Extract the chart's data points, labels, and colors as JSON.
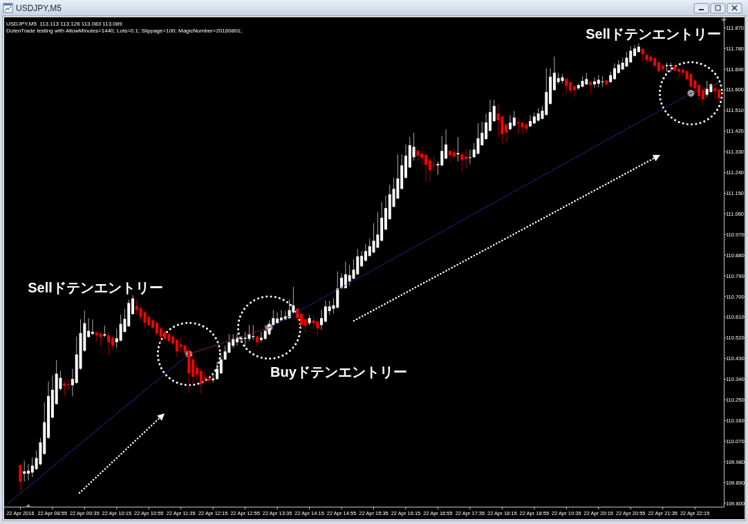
{
  "chart_data": {
    "type": "candlestick",
    "title": "USDJPY,M5",
    "subtitle": "USDJPY,M5  113.113 113.126 113.083 113.089",
    "annotations": [
      "DotenTrade testing with AllowMinutes=1440; Lots=0.1; Slippage=100; MagicNumber=20160801;",
      "Sellドテンエントリー",
      "Buyドテンエントリー",
      "Sellドテンエントリー"
    ],
    "x": [
      "2016-04-22T08:15",
      "2016-04-22T08:20",
      "2016-04-22T08:25",
      "2016-04-22T08:30",
      "2016-04-22T08:35",
      "2016-04-22T08:40",
      "2016-04-22T08:45",
      "2016-04-22T08:50",
      "2016-04-22T08:55",
      "2016-04-22T09:00",
      "2016-04-22T09:05",
      "2016-04-22T09:10",
      "2016-04-22T09:15",
      "2016-04-22T09:20",
      "2016-04-22T09:25",
      "2016-04-22T09:30",
      "2016-04-22T09:35",
      "2016-04-22T09:40",
      "2016-04-22T09:45",
      "2016-04-22T09:50",
      "2016-04-22T09:55",
      "2016-04-22T10:00",
      "2016-04-22T10:05",
      "2016-04-22T10:10",
      "2016-04-22T10:15",
      "2016-04-22T10:20",
      "2016-04-22T10:25",
      "2016-04-22T10:30",
      "2016-04-22T10:35",
      "2016-04-22T10:40",
      "2016-04-22T10:45",
      "2016-04-22T10:50",
      "2016-04-22T10:55",
      "2016-04-22T11:00",
      "2016-04-22T11:05",
      "2016-04-22T11:10",
      "2016-04-22T11:15",
      "2016-04-22T11:20",
      "2016-04-22T11:25",
      "2016-04-22T11:30",
      "2016-04-22T11:35",
      "2016-04-22T11:40",
      "2016-04-22T11:45",
      "2016-04-22T11:50",
      "2016-04-22T11:55",
      "2016-04-22T12:00",
      "2016-04-22T12:05",
      "2016-04-22T12:10",
      "2016-04-22T12:15",
      "2016-04-22T12:20",
      "2016-04-22T12:25",
      "2016-04-22T12:30",
      "2016-04-22T12:35",
      "2016-04-22T12:40",
      "2016-04-22T12:45",
      "2016-04-22T12:50",
      "2016-04-22T12:55",
      "2016-04-22T13:00",
      "2016-04-22T13:05",
      "2016-04-22T13:10",
      "2016-04-22T13:15",
      "2016-04-22T13:20",
      "2016-04-22T13:25",
      "2016-04-22T13:30",
      "2016-04-22T13:35",
      "2016-04-22T13:40",
      "2016-04-22T13:45",
      "2016-04-22T13:50",
      "2016-04-22T13:55",
      "2016-04-22T14:00",
      "2016-04-22T14:05",
      "2016-04-22T14:10",
      "2016-04-22T14:15",
      "2016-04-22T14:20",
      "2016-04-22T14:25",
      "2016-04-22T14:30",
      "2016-04-22T14:35",
      "2016-04-22T14:40",
      "2016-04-22T14:45",
      "2016-04-22T14:50",
      "2016-04-22T14:55",
      "2016-04-22T15:00",
      "2016-04-22T15:05",
      "2016-04-22T15:10",
      "2016-04-22T15:15",
      "2016-04-22T15:20",
      "2016-04-22T15:25",
      "2016-04-22T15:30",
      "2016-04-22T15:35",
      "2016-04-22T15:40",
      "2016-04-22T15:45",
      "2016-04-22T15:50",
      "2016-04-22T15:55",
      "2016-04-22T16:00",
      "2016-04-22T16:05",
      "2016-04-22T16:10",
      "2016-04-22T16:15",
      "2016-04-22T16:20",
      "2016-04-22T16:25",
      "2016-04-22T16:30",
      "2016-04-22T16:35",
      "2016-04-22T16:40",
      "2016-04-22T16:45",
      "2016-04-22T16:50",
      "2016-04-22T16:55",
      "2016-04-22T17:00",
      "2016-04-22T17:05",
      "2016-04-22T17:10",
      "2016-04-22T17:15",
      "2016-04-22T17:20",
      "2016-04-22T17:25",
      "2016-04-22T17:30",
      "2016-04-22T17:35",
      "2016-04-22T17:40",
      "2016-04-22T17:45",
      "2016-04-22T17:50",
      "2016-04-22T17:55",
      "2016-04-22T18:00",
      "2016-04-22T18:05",
      "2016-04-22T18:10",
      "2016-04-22T18:15",
      "2016-04-22T18:20",
      "2016-04-22T18:25",
      "2016-04-22T18:30",
      "2016-04-22T18:35",
      "2016-04-22T18:40",
      "2016-04-22T18:45",
      "2016-04-22T18:50",
      "2016-04-22T18:55",
      "2016-04-22T19:00",
      "2016-04-22T19:05",
      "2016-04-22T19:10",
      "2016-04-22T19:15",
      "2016-04-22T19:20",
      "2016-04-22T19:25",
      "2016-04-22T19:30",
      "2016-04-22T19:35",
      "2016-04-22T19:40",
      "2016-04-22T19:45",
      "2016-04-22T19:50",
      "2016-04-22T19:55",
      "2016-04-22T20:00",
      "2016-04-22T20:05",
      "2016-04-22T20:10",
      "2016-04-22T20:15",
      "2016-04-22T20:20",
      "2016-04-22T20:25",
      "2016-04-22T20:30",
      "2016-04-22T20:35",
      "2016-04-22T20:40",
      "2016-04-22T20:45",
      "2016-04-22T20:50",
      "2016-04-22T20:55",
      "2016-04-22T21:00",
      "2016-04-22T21:05",
      "2016-04-22T21:10",
      "2016-04-22T21:15",
      "2016-04-22T21:20",
      "2016-04-22T21:25",
      "2016-04-22T21:30",
      "2016-04-22T21:35",
      "2016-04-22T21:40",
      "2016-04-22T21:45",
      "2016-04-22T21:50",
      "2016-04-22T21:55",
      "2016-04-22T22:00",
      "2016-04-22T22:05",
      "2016-04-22T22:10",
      "2016-04-22T22:15",
      "2016-04-22T22:20",
      "2016-04-22T22:25",
      "2016-04-22T22:30",
      "2016-04-22T22:35",
      "2016-04-22T22:40",
      "2016-04-22T22:45"
    ],
    "ohlc": [
      [
        109.966,
        109.969,
        109.854,
        109.894
      ],
      [
        109.929,
        109.985,
        109.894,
        109.939
      ],
      [
        109.929,
        109.97,
        109.899,
        109.942
      ],
      [
        109.934,
        110.0,
        109.914,
        109.964
      ],
      [
        109.949,
        110.03,
        109.944,
        109.997
      ],
      [
        109.97,
        110.085,
        109.965,
        110.065
      ],
      [
        110.015,
        110.24,
        110.01,
        110.153
      ],
      [
        110.085,
        110.331,
        110.08,
        110.267
      ],
      [
        110.173,
        110.356,
        110.17,
        110.294
      ],
      [
        110.232,
        110.424,
        110.23,
        110.364
      ],
      [
        110.298,
        110.376,
        110.291,
        110.346
      ],
      [
        110.321,
        110.336,
        110.266,
        110.311
      ],
      [
        110.318,
        110.341,
        110.291,
        110.314
      ],
      [
        110.314,
        110.386,
        110.266,
        110.341
      ],
      [
        110.324,
        110.526,
        110.32,
        110.448
      ],
      [
        110.386,
        110.601,
        110.38,
        110.541
      ],
      [
        110.464,
        110.639,
        110.46,
        110.584
      ],
      [
        110.524,
        110.606,
        110.521,
        110.551
      ],
      [
        110.538,
        110.601,
        110.531,
        110.546
      ],
      [
        110.543,
        110.551,
        110.506,
        110.531
      ],
      [
        110.538,
        110.548,
        110.486,
        110.524
      ],
      [
        110.53,
        110.574,
        110.524,
        110.536
      ],
      [
        110.531,
        110.546,
        110.446,
        110.501
      ],
      [
        110.521,
        110.531,
        110.468,
        110.486
      ],
      [
        110.501,
        110.561,
        110.476,
        110.518
      ],
      [
        110.508,
        110.621,
        110.505,
        110.581
      ],
      [
        110.546,
        110.647,
        110.543,
        110.603
      ],
      [
        110.571,
        110.687,
        110.568,
        110.672
      ],
      [
        110.624,
        110.707,
        110.62,
        110.692
      ],
      [
        110.659,
        110.687,
        110.621,
        110.642
      ],
      [
        110.649,
        110.662,
        110.596,
        110.611
      ],
      [
        110.632,
        110.637,
        110.561,
        110.586
      ],
      [
        110.611,
        110.616,
        110.571,
        110.576
      ],
      [
        110.596,
        110.606,
        110.556,
        110.564
      ],
      [
        110.586,
        110.59,
        110.526,
        110.538
      ],
      [
        110.561,
        110.566,
        110.496,
        110.526
      ],
      [
        110.546,
        110.551,
        110.511,
        110.516
      ],
      [
        110.536,
        110.541,
        110.496,
        110.506
      ],
      [
        110.526,
        110.531,
        110.486,
        110.496
      ],
      [
        110.511,
        110.516,
        110.436,
        110.461
      ],
      [
        110.491,
        110.524,
        110.456,
        110.481
      ],
      [
        110.486,
        110.49,
        110.446,
        110.456
      ],
      [
        110.465,
        110.48,
        110.28,
        110.365
      ],
      [
        110.426,
        110.446,
        110.32,
        110.351
      ],
      [
        110.391,
        110.406,
        110.336,
        110.361
      ],
      [
        110.376,
        110.386,
        110.275,
        110.318
      ],
      [
        110.348,
        110.376,
        110.321,
        110.338
      ],
      [
        110.343,
        110.356,
        110.321,
        110.334
      ],
      [
        110.336,
        110.366,
        110.326,
        110.343
      ],
      [
        110.341,
        110.416,
        110.338,
        110.386
      ],
      [
        110.366,
        110.446,
        110.363,
        110.426
      ],
      [
        110.426,
        110.486,
        110.423,
        110.461
      ],
      [
        110.456,
        110.536,
        110.453,
        110.501
      ],
      [
        110.486,
        110.536,
        110.476,
        110.516
      ],
      [
        110.501,
        110.541,
        110.486,
        110.521
      ],
      [
        110.514,
        110.528,
        110.501,
        110.52
      ],
      [
        110.516,
        110.546,
        110.481,
        110.521
      ],
      [
        110.516,
        110.576,
        110.506,
        110.536
      ],
      [
        110.524,
        110.576,
        110.511,
        110.528
      ],
      [
        110.526,
        110.531,
        110.481,
        110.501
      ],
      [
        110.511,
        110.546,
        110.501,
        110.521
      ],
      [
        110.516,
        110.576,
        110.511,
        110.551
      ],
      [
        110.536,
        110.596,
        110.531,
        110.581
      ],
      [
        110.576,
        110.642,
        110.571,
        110.606
      ],
      [
        110.584,
        110.631,
        110.581,
        110.604
      ],
      [
        110.596,
        110.642,
        110.591,
        110.608
      ],
      [
        110.601,
        110.637,
        110.596,
        110.614
      ],
      [
        110.606,
        110.687,
        110.603,
        110.641
      ],
      [
        110.631,
        110.742,
        110.626,
        110.662
      ],
      [
        110.647,
        110.652,
        110.596,
        110.606
      ],
      [
        110.624,
        110.628,
        110.556,
        110.576
      ],
      [
        110.601,
        110.605,
        110.541,
        110.574
      ],
      [
        110.584,
        110.621,
        110.576,
        110.606
      ],
      [
        110.596,
        110.621,
        110.561,
        110.584
      ],
      [
        110.591,
        110.606,
        110.526,
        110.561
      ],
      [
        110.576,
        110.642,
        110.556,
        110.606
      ],
      [
        110.591,
        110.682,
        110.588,
        110.657
      ],
      [
        110.637,
        110.682,
        110.621,
        110.657
      ],
      [
        110.647,
        110.692,
        110.626,
        110.662
      ],
      [
        110.652,
        110.81,
        110.648,
        110.735
      ],
      [
        110.737,
        110.802,
        110.735,
        110.782
      ],
      [
        110.737,
        110.853,
        110.735,
        110.797
      ],
      [
        110.766,
        110.838,
        110.748,
        110.793
      ],
      [
        110.778,
        110.862,
        110.775,
        110.817
      ],
      [
        110.797,
        110.907,
        110.794,
        110.875
      ],
      [
        110.832,
        110.898,
        110.829,
        110.877
      ],
      [
        110.856,
        110.928,
        110.853,
        110.898
      ],
      [
        110.877,
        110.952,
        110.874,
        110.919
      ],
      [
        110.892,
        111.019,
        110.889,
        110.943
      ],
      [
        110.913,
        111.067,
        110.91,
        110.97
      ],
      [
        110.943,
        111.112,
        110.94,
        111.043
      ],
      [
        110.992,
        111.139,
        110.989,
        111.085
      ],
      [
        111.037,
        111.187,
        111.034,
        111.145
      ],
      [
        111.091,
        111.217,
        111.088,
        111.169
      ],
      [
        111.127,
        111.319,
        111.124,
        111.214
      ],
      [
        111.169,
        111.319,
        111.166,
        111.271
      ],
      [
        111.217,
        111.362,
        111.214,
        111.313
      ],
      [
        111.262,
        111.395,
        111.259,
        111.359
      ],
      [
        111.307,
        111.413,
        111.292,
        111.352
      ],
      [
        111.334,
        111.343,
        111.292,
        111.313
      ],
      [
        111.322,
        111.337,
        111.274,
        111.304
      ],
      [
        111.316,
        111.328,
        111.199,
        111.274
      ],
      [
        111.292,
        111.307,
        111.199,
        111.25
      ],
      [
        111.274,
        111.313,
        111.247,
        111.271
      ],
      [
        111.271,
        111.289,
        111.229,
        111.277
      ],
      [
        111.271,
        111.398,
        111.268,
        111.334
      ],
      [
        111.301,
        111.428,
        111.298,
        111.362
      ],
      [
        111.334,
        111.337,
        111.283,
        111.316
      ],
      [
        111.328,
        111.343,
        111.298,
        111.31
      ],
      [
        111.319,
        111.395,
        111.289,
        111.325
      ],
      [
        111.319,
        111.328,
        111.244,
        111.295
      ],
      [
        111.31,
        111.343,
        111.259,
        111.298
      ],
      [
        111.304,
        111.34,
        111.277,
        111.307
      ],
      [
        111.307,
        111.368,
        111.304,
        111.34
      ],
      [
        111.322,
        111.455,
        111.319,
        111.389
      ],
      [
        111.359,
        111.461,
        111.356,
        111.413
      ],
      [
        111.386,
        111.497,
        111.383,
        111.458
      ],
      [
        111.422,
        111.557,
        111.419,
        111.503
      ],
      [
        111.464,
        111.557,
        111.461,
        111.53
      ],
      [
        111.497,
        111.54,
        111.394,
        111.469
      ],
      [
        111.484,
        111.487,
        111.364,
        111.407
      ],
      [
        111.449,
        111.452,
        111.374,
        111.414
      ],
      [
        111.429,
        111.491,
        111.424,
        111.457
      ],
      [
        111.444,
        111.509,
        111.441,
        111.479
      ],
      [
        111.459,
        111.479,
        111.409,
        111.454
      ],
      [
        111.457,
        111.459,
        111.409,
        111.437
      ],
      [
        111.449,
        111.459,
        111.414,
        111.431
      ],
      [
        111.441,
        111.489,
        111.439,
        111.464
      ],
      [
        111.454,
        111.501,
        111.451,
        111.484
      ],
      [
        111.466,
        111.52,
        111.463,
        111.497
      ],
      [
        111.474,
        111.529,
        111.471,
        111.509
      ],
      [
        111.491,
        111.694,
        111.488,
        111.591
      ],
      [
        111.539,
        111.694,
        111.536,
        111.657
      ],
      [
        111.599,
        111.745,
        111.596,
        111.674
      ],
      [
        111.634,
        111.674,
        111.624,
        111.651
      ],
      [
        111.639,
        111.669,
        111.629,
        111.654
      ],
      [
        111.647,
        111.654,
        111.584,
        111.619
      ],
      [
        111.634,
        111.637,
        111.584,
        111.597
      ],
      [
        111.617,
        111.619,
        111.569,
        111.599
      ],
      [
        111.607,
        111.629,
        111.601,
        111.621
      ],
      [
        111.614,
        111.659,
        111.611,
        111.639
      ],
      [
        111.624,
        111.674,
        111.621,
        111.647
      ],
      [
        111.634,
        111.639,
        111.584,
        111.621
      ],
      [
        111.624,
        111.654,
        111.611,
        111.637
      ],
      [
        111.627,
        111.664,
        111.611,
        111.644
      ],
      [
        111.634,
        111.659,
        111.614,
        111.637
      ],
      [
        111.641,
        111.644,
        111.619,
        111.624
      ],
      [
        111.634,
        111.679,
        111.631,
        111.664
      ],
      [
        111.647,
        111.715,
        111.644,
        111.694
      ],
      [
        111.674,
        111.73,
        111.671,
        111.71
      ],
      [
        111.689,
        111.74,
        111.687,
        111.718
      ],
      [
        111.702,
        111.765,
        111.699,
        111.74
      ],
      [
        111.72,
        111.79,
        111.717,
        111.77
      ],
      [
        111.748,
        111.795,
        111.745,
        111.78
      ],
      [
        111.765,
        111.802,
        111.762,
        111.788
      ],
      [
        111.778,
        111.782,
        111.725,
        111.755
      ],
      [
        111.752,
        111.758,
        111.722,
        111.73
      ],
      [
        111.745,
        111.752,
        111.72,
        111.725
      ],
      [
        111.738,
        111.74,
        111.7,
        111.705
      ],
      [
        111.72,
        111.722,
        111.677,
        111.681
      ],
      [
        111.705,
        111.71,
        111.679,
        111.689
      ],
      [
        111.704,
        111.718,
        111.679,
        111.708
      ],
      [
        111.704,
        111.718,
        111.677,
        111.708
      ],
      [
        111.705,
        111.718,
        111.677,
        111.684
      ],
      [
        111.691,
        111.697,
        111.651,
        111.679
      ],
      [
        111.689,
        111.694,
        111.657,
        111.674
      ],
      [
        111.681,
        111.684,
        111.641,
        111.647
      ],
      [
        111.669,
        111.671,
        111.607,
        111.614
      ],
      [
        111.641,
        111.644,
        111.579,
        111.607
      ],
      [
        111.621,
        111.624,
        111.557,
        111.574
      ],
      [
        111.599,
        111.601,
        111.534,
        111.559
      ],
      [
        111.579,
        111.639,
        111.569,
        111.604
      ],
      [
        111.591,
        111.627,
        111.587,
        111.624
      ],
      [
        111.607,
        111.629,
        111.559,
        111.594
      ],
      [
        111.601,
        111.607,
        111.547,
        111.564
      ]
    ],
    "colors": [
      "#ff0000",
      "#ffffff",
      "#ffffff",
      "#ffffff",
      "#ffffff",
      "#ffffff",
      "#ffffff",
      "#ffffff",
      "#ffffff",
      "#ffffff",
      "#ffffff",
      "#ff0000",
      "#ff0000",
      "#ffffff",
      "#ffffff",
      "#ffffff",
      "#ffffff",
      "#ffffff",
      "#ffffff",
      "#ff0000",
      "#ff0000",
      "#ffffff",
      "#ff0000",
      "#ff0000",
      "#ffffff",
      "#ffffff",
      "#ffffff",
      "#ffffff",
      "#ffffff",
      "#ff0000",
      "#ff0000",
      "#ff0000",
      "#ff0000",
      "#ff0000",
      "#ff0000",
      "#ff0000",
      "#ff0000",
      "#ff0000",
      "#ff0000",
      "#ff0000",
      "#ff0000",
      "#ff0000",
      "#ff0000",
      "#ff0000",
      "#ff0000",
      "#ff0000",
      "#ff0000",
      "#ff0000",
      "#ffffff",
      "#ffffff",
      "#ffffff",
      "#ffffff",
      "#ffffff",
      "#ffffff",
      "#ffffff",
      "#ffffff",
      "#ffffff",
      "#ffffff",
      "#ffffff",
      "#ff0000",
      "#ffffff",
      "#ffffff",
      "#ffffff",
      "#ffffff",
      "#ffffff",
      "#ffffff",
      "#ffffff",
      "#ffffff",
      "#ffffff",
      "#ff0000",
      "#ff0000",
      "#ff0000",
      "#ffffff",
      "#ff0000",
      "#ff0000",
      "#ffffff",
      "#ffffff",
      "#ffffff",
      "#ffffff",
      "#ffffff",
      "#ffffff",
      "#ffffff",
      "#ffffff",
      "#ffffff",
      "#ffffff",
      "#ffffff",
      "#ffffff",
      "#ffffff",
      "#ffffff",
      "#ffffff",
      "#ffffff",
      "#ffffff",
      "#ffffff",
      "#ffffff",
      "#ffffff",
      "#ffffff",
      "#ffffff",
      "#ffffff",
      "#ffffff",
      "#ff0000",
      "#ff0000",
      "#ff0000",
      "#ff0000",
      "#ff0000",
      "#ffffff",
      "#ffffff",
      "#ffffff",
      "#ff0000",
      "#ff0000",
      "#ffffff",
      "#ff0000",
      "#ff0000",
      "#ffffff",
      "#ffffff",
      "#ffffff",
      "#ffffff",
      "#ffffff",
      "#ffffff",
      "#ffffff",
      "#ff0000",
      "#ff0000",
      "#ff0000",
      "#ffffff",
      "#ffffff",
      "#ff0000",
      "#ff0000",
      "#ff0000",
      "#ffffff",
      "#ffffff",
      "#ffffff",
      "#ffffff",
      "#ffffff",
      "#ffffff",
      "#ffffff",
      "#ffffff",
      "#ffffff",
      "#ff0000",
      "#ff0000",
      "#ff0000",
      "#ffffff",
      "#ffffff",
      "#ffffff",
      "#ff0000",
      "#ffffff",
      "#ffffff",
      "#ffffff",
      "#ff0000",
      "#ffffff",
      "#ffffff",
      "#ffffff",
      "#ffffff",
      "#ffffff",
      "#ffffff",
      "#ffffff",
      "#ffffff",
      "#ff0000",
      "#ff0000",
      "#ff0000",
      "#ff0000",
      "#ff0000",
      "#ff0000",
      "#ffffff",
      "#ffffff",
      "#ff0000",
      "#ff0000",
      "#ff0000",
      "#ff0000",
      "#ff0000",
      "#ff0000",
      "#ff0000",
      "#ff0000",
      "#ffffff",
      "#ffffff",
      "#ff0000",
      "#ff0000"
    ],
    "xlim": [
      "2016-04-22T07:54",
      "2016-04-22T22:51"
    ],
    "xticks": [
      {
        "value": "2016-04-22T08:15",
        "label": "22 Apr 2016"
      },
      {
        "value": "2016-04-22T08:55",
        "label": "22 Apr 08:55"
      },
      {
        "value": "2016-04-22T09:35",
        "label": "22 Apr 09:35"
      },
      {
        "value": "2016-04-22T10:15",
        "label": "22 Apr 10:15"
      },
      {
        "value": "2016-04-22T10:55",
        "label": "22 Apr 10:55"
      },
      {
        "value": "2016-04-22T11:35",
        "label": "22 Apr 11:35"
      },
      {
        "value": "2016-04-22T12:15",
        "label": "22 Apr 12:15"
      },
      {
        "value": "2016-04-22T12:55",
        "label": "22 Apr 12:55"
      },
      {
        "value": "2016-04-22T13:35",
        "label": "22 Apr 13:35"
      },
      {
        "value": "2016-04-22T14:15",
        "label": "22 Apr 14:15"
      },
      {
        "value": "2016-04-22T14:55",
        "label": "22 Apr 14:55"
      },
      {
        "value": "2016-04-22T15:35",
        "label": "22 Apr 15:35"
      },
      {
        "value": "2016-04-22T16:15",
        "label": "22 Apr 16:15"
      },
      {
        "value": "2016-04-22T16:55",
        "label": "22 Apr 16:55"
      },
      {
        "value": "2016-04-22T17:35",
        "label": "22 Apr 17:35"
      },
      {
        "value": "2016-04-22T18:15",
        "label": "22 Apr 18:15"
      },
      {
        "value": "2016-04-22T18:55",
        "label": "22 Apr 18:55"
      },
      {
        "value": "2016-04-22T19:35",
        "label": "22 Apr 19:35"
      },
      {
        "value": "2016-04-22T20:15",
        "label": "22 Apr 20:15"
      },
      {
        "value": "2016-04-22T20:55",
        "label": "22 Apr 20:55"
      },
      {
        "value": "2016-04-22T21:35",
        "label": "22 Apr 21:35"
      },
      {
        "value": "2016-04-22T22:15",
        "label": "22 Apr 22:15"
      }
    ],
    "ylim": [
      109.785,
      111.91
    ],
    "yticks": [
      {
        "value": 109.8,
        "label": "109.800"
      },
      {
        "value": 109.89,
        "label": "109.890"
      },
      {
        "value": 109.98,
        "label": "109.980"
      },
      {
        "value": 110.07,
        "label": "110.070"
      },
      {
        "value": 110.16,
        "label": "110.160"
      },
      {
        "value": 110.25,
        "label": "110.250"
      },
      {
        "value": 110.34,
        "label": "110.340"
      },
      {
        "value": 110.43,
        "label": "110.430"
      },
      {
        "value": 110.52,
        "label": "110.520"
      },
      {
        "value": 110.61,
        "label": "110.610"
      },
      {
        "value": 110.7,
        "label": "110.700"
      },
      {
        "value": 110.79,
        "label": "110.790"
      },
      {
        "value": 110.88,
        "label": "110.880"
      },
      {
        "value": 110.97,
        "label": "110.970"
      },
      {
        "value": 111.06,
        "label": "111.060"
      },
      {
        "value": 111.15,
        "label": "111.150"
      },
      {
        "value": 111.24,
        "label": "111.240"
      },
      {
        "value": 111.33,
        "label": "111.330"
      },
      {
        "value": 111.42,
        "label": "111.420"
      },
      {
        "value": 111.51,
        "label": "111.510"
      },
      {
        "value": 111.6,
        "label": "111.600"
      },
      {
        "value": 111.69,
        "label": "111.690"
      },
      {
        "value": 111.78,
        "label": "111.780"
      },
      {
        "value": 111.87,
        "label": "111.870"
      }
    ],
    "series": [
      {
        "type": "line",
        "x": [
          "2016-04-22T08:00",
          "2016-04-22T11:45"
        ],
        "values": [
          109.8,
          110.45
        ],
        "color": "#2a2a9a",
        "line_style": "dotted"
      },
      {
        "type": "line",
        "x": [
          "2016-04-22T11:45",
          "2016-04-22T13:25"
        ],
        "values": [
          110.45,
          110.565
        ],
        "color": "#a03030",
        "line_style": "dotted"
      },
      {
        "type": "line",
        "x": [
          "2016-04-22T13:25",
          "2016-04-22T22:10"
        ],
        "values": [
          110.565,
          111.585
        ],
        "color": "#2a2a9a",
        "line_style": "dotted"
      },
      {
        "type": "line",
        "x": [
          "2016-04-22T22:10",
          "2016-04-22T22:45"
        ],
        "values": [
          111.585,
          111.63
        ],
        "color": "#a03030",
        "line_style": "dotted"
      },
      {
        "type": "scatter",
        "x": [
          "2016-04-22T11:45",
          "2016-04-22T13:25",
          "2016-04-22T22:10"
        ],
        "values": [
          110.45,
          110.565,
          111.585
        ],
        "color": "#9a9a9a",
        "marker": "circle"
      }
    ]
  }
}
